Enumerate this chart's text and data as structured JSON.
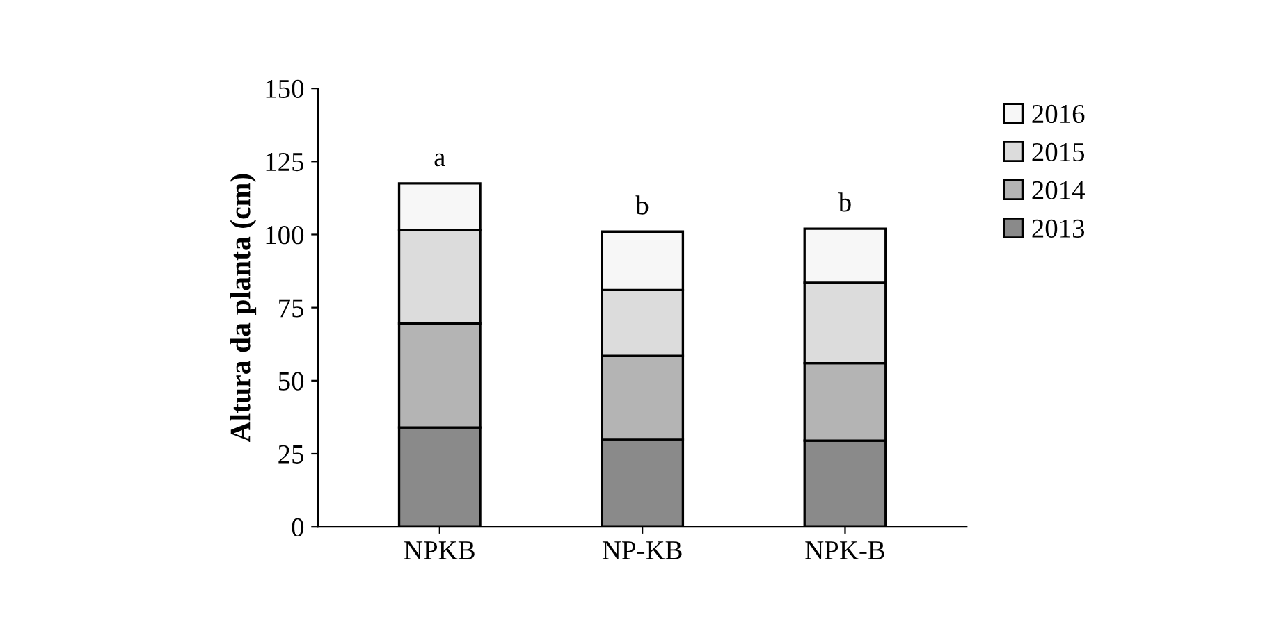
{
  "chart_data": {
    "type": "bar",
    "stacked": true,
    "ylabel": "Altura da planta (cm)",
    "categories": [
      "NPKB",
      "NP-KB",
      "NPK-B"
    ],
    "series": [
      {
        "name": "2013",
        "color": "#8a8a8a",
        "values": [
          34,
          30,
          29.5
        ]
      },
      {
        "name": "2014",
        "color": "#b4b4b4",
        "values": [
          35.5,
          28.5,
          26.5
        ]
      },
      {
        "name": "2015",
        "color": "#dcdcdc",
        "values": [
          32,
          22.5,
          27.5
        ]
      },
      {
        "name": "2016",
        "color": "#f7f7f7",
        "values": [
          16,
          20,
          18.5
        ]
      }
    ],
    "ylim": [
      0,
      150
    ],
    "yticks": [
      0,
      25,
      50,
      75,
      100,
      125,
      150
    ],
    "grid": false,
    "legend": "top right",
    "annotations": [
      {
        "text": "a",
        "x": "NPKB",
        "y": 117.5
      },
      {
        "text": "b",
        "x": "NP-KB",
        "y": 101
      },
      {
        "text": "b",
        "x": "NPK-B",
        "y": 102
      }
    ]
  }
}
